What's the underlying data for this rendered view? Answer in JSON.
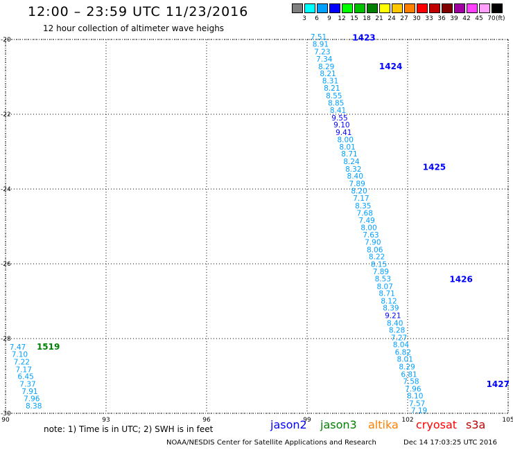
{
  "header": {
    "title": "12:00 – 23:59 UTC 11/23/2016",
    "subtitle": "12 hour collection of altimeter wave heighs"
  },
  "legend": {
    "unit": "(ft)",
    "scale": [
      {
        "label": "3",
        "color": "#7f7f7f"
      },
      {
        "label": "6",
        "color": "#00ffff"
      },
      {
        "label": "9",
        "color": "#00a0ff"
      },
      {
        "label": "12",
        "color": "#0000ff"
      },
      {
        "label": "15",
        "color": "#00ff00"
      },
      {
        "label": "18",
        "color": "#00c000"
      },
      {
        "label": "21",
        "color": "#008000"
      },
      {
        "label": "24",
        "color": "#ffff00"
      },
      {
        "label": "27",
        "color": "#ffc800"
      },
      {
        "label": "30",
        "color": "#ff8000"
      },
      {
        "label": "33",
        "color": "#ff0000"
      },
      {
        "label": "36",
        "color": "#c00000"
      },
      {
        "label": "39",
        "color": "#800000"
      },
      {
        "label": "42",
        "color": "#a000a0"
      },
      {
        "label": "45",
        "color": "#ff40ff"
      },
      {
        "label": "70",
        "color": "#ffa0ff"
      },
      {
        "label": "",
        "color": "#000000"
      }
    ]
  },
  "footer": {
    "note": "note: 1) Time is in UTC; 2) SWH is in feet",
    "satellites": [
      {
        "name": "jason2",
        "color": "#0000ff"
      },
      {
        "name": "jason3",
        "color": "#008000"
      },
      {
        "name": "altika",
        "color": "#ff8000"
      },
      {
        "name": "cryosat",
        "color": "#ff0000"
      },
      {
        "name": "s3a",
        "color": "#c00000"
      }
    ],
    "credit": "NOAA/NESDIS Center for Satellite Applications and Research",
    "timestamp": "Dec 14 17:03:25 UTC 2016"
  },
  "chart_data": {
    "type": "scatter",
    "xlim": [
      90,
      105
    ],
    "ylim": [
      -30,
      -20
    ],
    "x_ticks": [
      "90",
      "93",
      "96",
      "99",
      "102",
      "105"
    ],
    "y_ticks": [
      "-20",
      "-22",
      "-24",
      "-26",
      "-28",
      "-30"
    ],
    "grid": true,
    "series": [
      {
        "name": "jason2",
        "color": "#0000ff",
        "tracks": [
          {
            "label": "1423",
            "label_lon": 100.35,
            "label_lat": -19.95
          },
          {
            "label": "1424",
            "label_lon": 101.15,
            "label_lat": -20.72
          },
          {
            "label": "1425",
            "label_lon": 102.45,
            "label_lat": -23.42
          },
          {
            "label": "1426",
            "label_lon": 103.25,
            "label_lat": -26.42
          },
          {
            "label": "1427",
            "label_lon": 104.35,
            "label_lat": -29.22
          }
        ],
        "points": [
          {
            "lon": 99.1,
            "lat": -19.93,
            "value": "7.51",
            "color": "#00a0ff"
          },
          {
            "lon": 99.16,
            "lat": -20.12,
            "value": "8.91",
            "color": "#00a0ff"
          },
          {
            "lon": 99.21,
            "lat": -20.32,
            "value": "7.23",
            "color": "#00a0ff"
          },
          {
            "lon": 99.27,
            "lat": -20.52,
            "value": "7.34",
            "color": "#00a0ff"
          },
          {
            "lon": 99.33,
            "lat": -20.72,
            "value": "8.29",
            "color": "#00a0ff"
          },
          {
            "lon": 99.38,
            "lat": -20.91,
            "value": "8.21",
            "color": "#00a0ff"
          },
          {
            "lon": 99.45,
            "lat": -21.1,
            "value": "8.31",
            "color": "#00a0ff"
          },
          {
            "lon": 99.5,
            "lat": -21.3,
            "value": "8.21",
            "color": "#00a0ff"
          },
          {
            "lon": 99.56,
            "lat": -21.5,
            "value": "8.55",
            "color": "#00a0ff"
          },
          {
            "lon": 99.62,
            "lat": -21.69,
            "value": "8.85",
            "color": "#00a0ff"
          },
          {
            "lon": 99.68,
            "lat": -21.89,
            "value": "8.41",
            "color": "#00a0ff"
          },
          {
            "lon": 99.73,
            "lat": -22.09,
            "value": "9.55",
            "color": "#0000ff"
          },
          {
            "lon": 99.79,
            "lat": -22.28,
            "value": "9.10",
            "color": "#0000ff"
          },
          {
            "lon": 99.85,
            "lat": -22.48,
            "value": "9.41",
            "color": "#0000ff"
          },
          {
            "lon": 99.9,
            "lat": -22.68,
            "value": "8.00",
            "color": "#00a0ff"
          },
          {
            "lon": 99.96,
            "lat": -22.87,
            "value": "8.01",
            "color": "#00a0ff"
          },
          {
            "lon": 100.02,
            "lat": -23.06,
            "value": "8.71",
            "color": "#00a0ff"
          },
          {
            "lon": 100.08,
            "lat": -23.26,
            "value": "8.24",
            "color": "#00a0ff"
          },
          {
            "lon": 100.14,
            "lat": -23.46,
            "value": "8.32",
            "color": "#00a0ff"
          },
          {
            "lon": 100.19,
            "lat": -23.65,
            "value": "8.40",
            "color": "#00a0ff"
          },
          {
            "lon": 100.25,
            "lat": -23.85,
            "value": "7.89",
            "color": "#00a0ff"
          },
          {
            "lon": 100.31,
            "lat": -24.05,
            "value": "8.20",
            "color": "#00a0ff"
          },
          {
            "lon": 100.37,
            "lat": -24.24,
            "value": "7.17",
            "color": "#00a0ff"
          },
          {
            "lon": 100.43,
            "lat": -24.44,
            "value": "8.35",
            "color": "#00a0ff"
          },
          {
            "lon": 100.48,
            "lat": -24.64,
            "value": "7.68",
            "color": "#00a0ff"
          },
          {
            "lon": 100.54,
            "lat": -24.83,
            "value": "7.49",
            "color": "#00a0ff"
          },
          {
            "lon": 100.6,
            "lat": -25.03,
            "value": "8.00",
            "color": "#00a0ff"
          },
          {
            "lon": 100.66,
            "lat": -25.22,
            "value": "7.63",
            "color": "#00a0ff"
          },
          {
            "lon": 100.72,
            "lat": -25.42,
            "value": "7.90",
            "color": "#00a0ff"
          },
          {
            "lon": 100.78,
            "lat": -25.62,
            "value": "8.06",
            "color": "#00a0ff"
          },
          {
            "lon": 100.84,
            "lat": -25.81,
            "value": "8.22",
            "color": "#00a0ff"
          },
          {
            "lon": 100.9,
            "lat": -26.01,
            "value": "8.15",
            "color": "#00a0ff"
          },
          {
            "lon": 100.96,
            "lat": -26.2,
            "value": "7.89",
            "color": "#00a0ff"
          },
          {
            "lon": 101.02,
            "lat": -26.4,
            "value": "8.53",
            "color": "#00a0ff"
          },
          {
            "lon": 101.08,
            "lat": -26.6,
            "value": "8.07",
            "color": "#00a0ff"
          },
          {
            "lon": 101.14,
            "lat": -26.79,
            "value": "8.71",
            "color": "#00a0ff"
          },
          {
            "lon": 101.2,
            "lat": -26.99,
            "value": "8.12",
            "color": "#00a0ff"
          },
          {
            "lon": 101.26,
            "lat": -27.18,
            "value": "8.39",
            "color": "#00a0ff"
          },
          {
            "lon": 101.32,
            "lat": -27.38,
            "value": "9.21",
            "color": "#0000ff"
          },
          {
            "lon": 101.38,
            "lat": -27.58,
            "value": "8.40",
            "color": "#00a0ff"
          },
          {
            "lon": 101.44,
            "lat": -27.77,
            "value": "8.28",
            "color": "#00a0ff"
          },
          {
            "lon": 101.5,
            "lat": -27.97,
            "value": "7.27",
            "color": "#00a0ff"
          },
          {
            "lon": 101.56,
            "lat": -28.16,
            "value": "8.04",
            "color": "#00a0ff"
          },
          {
            "lon": 101.62,
            "lat": -28.36,
            "value": "6.82",
            "color": "#00a0ff"
          },
          {
            "lon": 101.68,
            "lat": -28.55,
            "value": "8.01",
            "color": "#00a0ff"
          },
          {
            "lon": 101.74,
            "lat": -28.75,
            "value": "8.29",
            "color": "#00a0ff"
          },
          {
            "lon": 101.8,
            "lat": -28.95,
            "value": "6.81",
            "color": "#00a0ff"
          },
          {
            "lon": 101.86,
            "lat": -29.14,
            "value": "7.58",
            "color": "#00a0ff"
          },
          {
            "lon": 101.92,
            "lat": -29.34,
            "value": "7.96",
            "color": "#00a0ff"
          },
          {
            "lon": 101.98,
            "lat": -29.53,
            "value": "8.10",
            "color": "#00a0ff"
          },
          {
            "lon": 102.04,
            "lat": -29.73,
            "value": "7.57",
            "color": "#00a0ff"
          },
          {
            "lon": 102.1,
            "lat": -29.92,
            "value": "7.19",
            "color": "#00a0ff"
          }
        ]
      },
      {
        "name": "jason3",
        "color": "#008000",
        "tracks": [
          {
            "label": "1519",
            "label_lon": 90.93,
            "label_lat": -28.22
          }
        ],
        "points": [
          {
            "lon": 90.12,
            "lat": -28.22,
            "value": "7.47",
            "color": "#00a0ff"
          },
          {
            "lon": 90.18,
            "lat": -28.42,
            "value": "7.10",
            "color": "#00a0ff"
          },
          {
            "lon": 90.24,
            "lat": -28.62,
            "value": "7.22",
            "color": "#00a0ff"
          },
          {
            "lon": 90.3,
            "lat": -28.82,
            "value": "7.17",
            "color": "#00a0ff"
          },
          {
            "lon": 90.36,
            "lat": -29.01,
            "value": "6.45",
            "color": "#00a0ff"
          },
          {
            "lon": 90.42,
            "lat": -29.21,
            "value": "7.37",
            "color": "#00a0ff"
          },
          {
            "lon": 90.48,
            "lat": -29.41,
            "value": "7.91",
            "color": "#00a0ff"
          },
          {
            "lon": 90.54,
            "lat": -29.6,
            "value": "7.96",
            "color": "#00a0ff"
          },
          {
            "lon": 90.6,
            "lat": -29.8,
            "value": "8.38",
            "color": "#00a0ff"
          }
        ]
      }
    ]
  }
}
